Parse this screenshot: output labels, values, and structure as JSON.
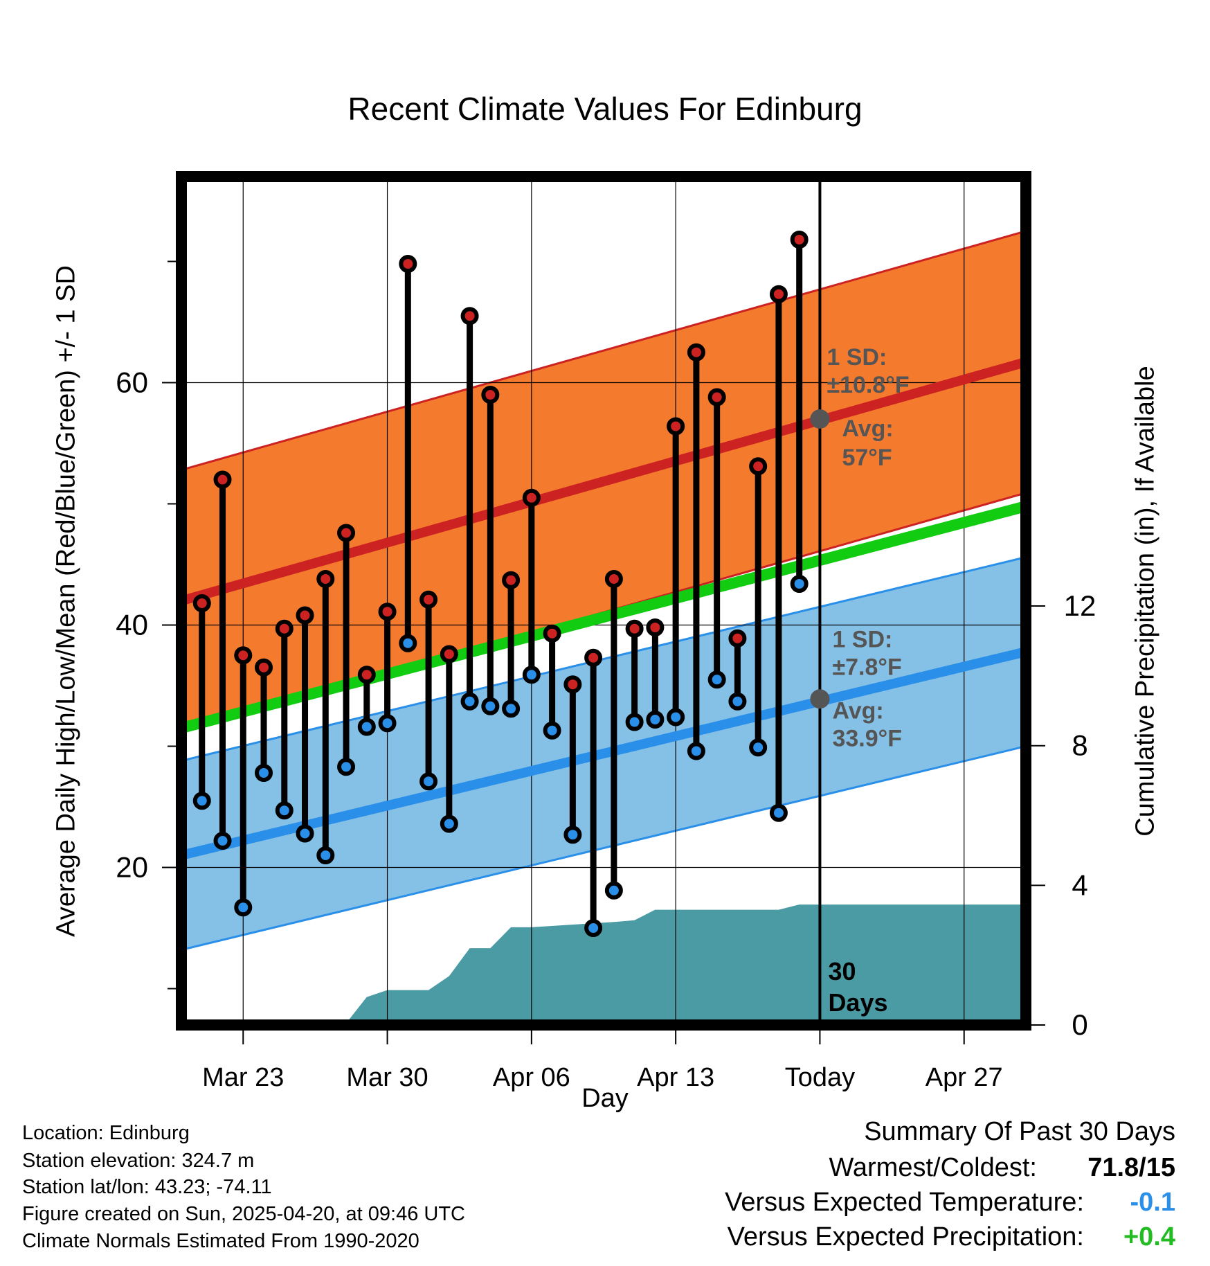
{
  "chart_data": {
    "type": "line",
    "title": "Recent Climate Values For Edinburg",
    "xlabel": "Day",
    "ylabel": "Average Daily High/Low/Mean (Red/Blue/Green) +/- 1 SD",
    "y2label": "Cumulative Precipitation (in), If Available",
    "xlim": [
      "2025-03-20",
      "2025-04-30"
    ],
    "ylim": [
      7,
      77
    ],
    "y2lim": [
      0,
      24.3
    ],
    "x_ticks": [
      {
        "date": "2025-03-23",
        "label": "Mar 23"
      },
      {
        "date": "2025-03-30",
        "label": "Mar 30"
      },
      {
        "date": "2025-04-06",
        "label": "Apr 06"
      },
      {
        "date": "2025-04-13",
        "label": "Apr 13"
      },
      {
        "date": "2025-04-20",
        "label": "Today"
      },
      {
        "date": "2025-04-27",
        "label": "Apr 27"
      }
    ],
    "y_ticks": [
      20,
      40,
      60
    ],
    "y_minor_ticks": [
      10,
      30,
      50,
      70
    ],
    "y2_ticks": [
      0,
      4,
      8,
      12
    ],
    "grid": true,
    "today": "2025-04-20",
    "today_label": "30 Days",
    "normals": {
      "high_mean": [
        [
          "2025-03-20",
          42
        ],
        [
          "2025-04-30",
          61.7
        ]
      ],
      "high_sd": 10.8,
      "low_mean": [
        [
          "2025-03-20",
          21
        ],
        [
          "2025-04-30",
          37.8
        ]
      ],
      "low_sd": 7.8,
      "mean": [
        [
          "2025-03-20",
          31.5
        ],
        [
          "2025-04-30",
          49.8
        ]
      ]
    },
    "high_annotation": {
      "sd_label": "1 SD:",
      "sd_value": "±10.8°F",
      "avg_label": "Avg:",
      "avg_value": "57°F",
      "value": 57
    },
    "low_annotation": {
      "sd_label": "1 SD:",
      "sd_value": "±7.8°F",
      "avg_label": "Avg:",
      "avg_value": "33.9°F",
      "value": 33.9
    },
    "series": [
      {
        "name": "High",
        "color": "#cc2222",
        "values": [
          [
            "2025-03-21",
            41.8
          ],
          [
            "2025-03-22",
            52
          ],
          [
            "2025-03-23",
            37.5
          ],
          [
            "2025-03-24",
            36.5
          ],
          [
            "2025-03-25",
            39.7
          ],
          [
            "2025-03-26",
            40.8
          ],
          [
            "2025-03-27",
            43.8
          ],
          [
            "2025-03-28",
            47.6
          ],
          [
            "2025-03-29",
            35.9
          ],
          [
            "2025-03-30",
            41.1
          ],
          [
            "2025-03-31",
            69.8
          ],
          [
            "2025-04-01",
            42.1
          ],
          [
            "2025-04-02",
            37.6
          ],
          [
            "2025-04-03",
            65.5
          ],
          [
            "2025-04-04",
            59
          ],
          [
            "2025-04-05",
            43.7
          ],
          [
            "2025-04-06",
            50.5
          ],
          [
            "2025-04-07",
            39.3
          ],
          [
            "2025-04-08",
            35.1
          ],
          [
            "2025-04-09",
            37.3
          ],
          [
            "2025-04-10",
            43.8
          ],
          [
            "2025-04-11",
            39.7
          ],
          [
            "2025-04-12",
            39.8
          ],
          [
            "2025-04-13",
            56.4
          ],
          [
            "2025-04-14",
            62.5
          ],
          [
            "2025-04-15",
            58.8
          ],
          [
            "2025-04-16",
            38.9
          ],
          [
            "2025-04-17",
            53.1
          ],
          [
            "2025-04-18",
            67.3
          ],
          [
            "2025-04-19",
            71.8
          ]
        ]
      },
      {
        "name": "Low",
        "color": "#2a8fe8",
        "values": [
          [
            "2025-03-21",
            25.5
          ],
          [
            "2025-03-22",
            22.2
          ],
          [
            "2025-03-23",
            16.7
          ],
          [
            "2025-03-24",
            27.8
          ],
          [
            "2025-03-25",
            24.7
          ],
          [
            "2025-03-26",
            22.8
          ],
          [
            "2025-03-27",
            21
          ],
          [
            "2025-03-28",
            28.3
          ],
          [
            "2025-03-29",
            31.6
          ],
          [
            "2025-03-30",
            31.9
          ],
          [
            "2025-03-31",
            38.5
          ],
          [
            "2025-04-01",
            27.1
          ],
          [
            "2025-04-02",
            23.6
          ],
          [
            "2025-04-03",
            33.7
          ],
          [
            "2025-04-04",
            33.3
          ],
          [
            "2025-04-05",
            33.1
          ],
          [
            "2025-04-06",
            35.9
          ],
          [
            "2025-04-07",
            31.3
          ],
          [
            "2025-04-08",
            22.7
          ],
          [
            "2025-04-09",
            15
          ],
          [
            "2025-04-10",
            18.1
          ],
          [
            "2025-04-11",
            32
          ],
          [
            "2025-04-12",
            32.2
          ],
          [
            "2025-04-13",
            32.4
          ],
          [
            "2025-04-14",
            29.6
          ],
          [
            "2025-04-15",
            35.5
          ],
          [
            "2025-04-16",
            33.7
          ],
          [
            "2025-04-17",
            29.9
          ],
          [
            "2025-04-18",
            24.5
          ],
          [
            "2025-04-19",
            43.4
          ]
        ]
      }
    ],
    "precipitation": {
      "color": "#4a9ba4",
      "values": [
        [
          "2025-03-20",
          0
        ],
        [
          "2025-03-24",
          0.05
        ],
        [
          "2025-03-28",
          0.05
        ],
        [
          "2025-03-29",
          0.8
        ],
        [
          "2025-03-30",
          1.0
        ],
        [
          "2025-04-01",
          1.0
        ],
        [
          "2025-04-02",
          1.4
        ],
        [
          "2025-04-03",
          2.2
        ],
        [
          "2025-04-04",
          2.2
        ],
        [
          "2025-04-05",
          2.8
        ],
        [
          "2025-04-06",
          2.8
        ],
        [
          "2025-04-10",
          2.95
        ],
        [
          "2025-04-11",
          3.0
        ],
        [
          "2025-04-12",
          3.3
        ],
        [
          "2025-04-18",
          3.3
        ],
        [
          "2025-04-19",
          3.45
        ],
        [
          "2025-04-30",
          3.45
        ]
      ]
    }
  },
  "footer": {
    "location": "Location: Edinburg",
    "elevation": "Station elevation: 324.7 m",
    "latlon": "Station lat/lon: 43.23; -74.11",
    "created": "Figure created on Sun, 2025-04-20, at 09:46 UTC",
    "normals": "Climate Normals Estimated From 1990-2020"
  },
  "summary": {
    "title": "Summary Of Past 30 Days",
    "warm_cold_label": "Warmest/Coldest:",
    "warm_cold_value": "71.8/15",
    "temp_label": "Versus Expected Temperature:",
    "temp_value": "-0.1",
    "temp_color": "#2a8fe8",
    "precip_label": "Versus Expected Precipitation:",
    "precip_value": "+0.4",
    "precip_color": "#22bb22"
  },
  "colors": {
    "high_band": "#f47a2e",
    "high_line": "#cc2222",
    "low_band": "#85c1e6",
    "low_line": "#2a8fe8",
    "mean_line": "#11cc11",
    "annotation": "#555555"
  }
}
